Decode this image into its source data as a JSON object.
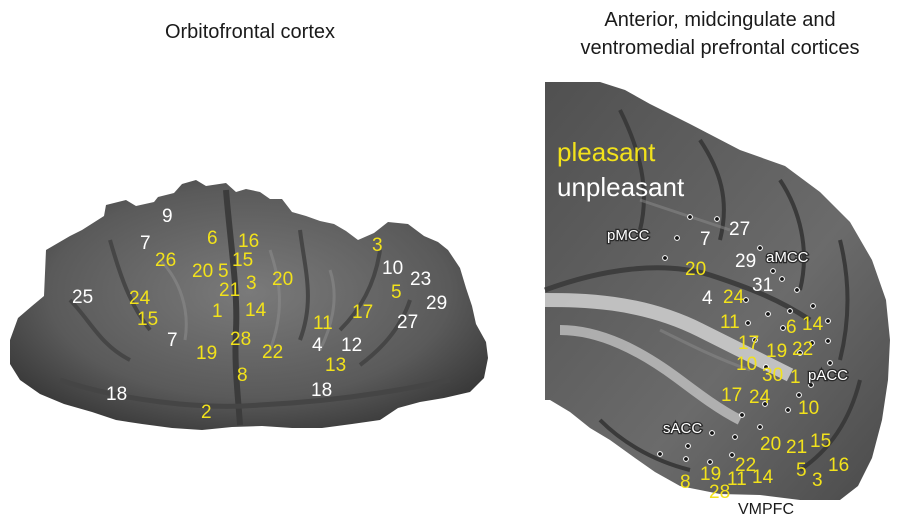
{
  "titles": {
    "left": "Orbitofrontal cortex",
    "right_line1": "Anterior, midcingulate and",
    "right_line2": "ventromedial prefrontal cortices"
  },
  "legend": {
    "pleasant": "pleasant",
    "unpleasant": "unpleasant",
    "pleasant_color": "#f2e21b",
    "unpleasant_color": "#ffffff"
  },
  "regions": {
    "pmcc": "pMCC",
    "amcc": "aMCC",
    "pacc": "pACC",
    "sacc": "sACC",
    "vmpfc": "VMPFC"
  },
  "ofc_labels": [
    {
      "t": "9",
      "c": "unpleasant"
    },
    {
      "t": "7",
      "c": "unpleasant"
    },
    {
      "t": "6",
      "c": "pleasant"
    },
    {
      "t": "16",
      "c": "pleasant"
    },
    {
      "t": "26",
      "c": "pleasant"
    },
    {
      "t": "15",
      "c": "pleasant"
    },
    {
      "t": "20",
      "c": "pleasant"
    },
    {
      "t": "5",
      "c": "pleasant"
    },
    {
      "t": "3",
      "c": "pleasant"
    },
    {
      "t": "21",
      "c": "pleasant"
    },
    {
      "t": "20",
      "c": "pleasant"
    },
    {
      "t": "3",
      "c": "pleasant"
    },
    {
      "t": "10",
      "c": "unpleasant"
    },
    {
      "t": "23",
      "c": "unpleasant"
    },
    {
      "t": "5",
      "c": "pleasant"
    },
    {
      "t": "29",
      "c": "unpleasant"
    },
    {
      "t": "25",
      "c": "unpleasant"
    },
    {
      "t": "24",
      "c": "pleasant"
    },
    {
      "t": "15",
      "c": "pleasant"
    },
    {
      "t": "1",
      "c": "pleasant"
    },
    {
      "t": "14",
      "c": "pleasant"
    },
    {
      "t": "17",
      "c": "pleasant"
    },
    {
      "t": "27",
      "c": "unpleasant"
    },
    {
      "t": "11",
      "c": "pleasant"
    },
    {
      "t": "7",
      "c": "unpleasant"
    },
    {
      "t": "28",
      "c": "pleasant"
    },
    {
      "t": "4",
      "c": "unpleasant"
    },
    {
      "t": "12",
      "c": "unpleasant"
    },
    {
      "t": "19",
      "c": "pleasant"
    },
    {
      "t": "22",
      "c": "pleasant"
    },
    {
      "t": "13",
      "c": "pleasant"
    },
    {
      "t": "8",
      "c": "pleasant"
    },
    {
      "t": "18",
      "c": "unpleasant"
    },
    {
      "t": "18",
      "c": "unpleasant"
    },
    {
      "t": "2",
      "c": "pleasant"
    }
  ],
  "cing_labels": [
    {
      "t": "7",
      "c": "unpleasant"
    },
    {
      "t": "27",
      "c": "unpleasant"
    },
    {
      "t": "20",
      "c": "pleasant"
    },
    {
      "t": "29",
      "c": "unpleasant"
    },
    {
      "t": "31",
      "c": "unpleasant"
    },
    {
      "t": "4",
      "c": "unpleasant"
    },
    {
      "t": "24",
      "c": "pleasant"
    },
    {
      "t": "11",
      "c": "pleasant"
    },
    {
      "t": "6",
      "c": "pleasant"
    },
    {
      "t": "14",
      "c": "pleasant"
    },
    {
      "t": "17",
      "c": "pleasant"
    },
    {
      "t": "19",
      "c": "pleasant"
    },
    {
      "t": "22",
      "c": "pleasant"
    },
    {
      "t": "10",
      "c": "pleasant"
    },
    {
      "t": "30",
      "c": "pleasant"
    },
    {
      "t": "1",
      "c": "pleasant"
    },
    {
      "t": "17",
      "c": "pleasant"
    },
    {
      "t": "24",
      "c": "pleasant"
    },
    {
      "t": "10",
      "c": "pleasant"
    },
    {
      "t": "20",
      "c": "pleasant"
    },
    {
      "t": "21",
      "c": "pleasant"
    },
    {
      "t": "15",
      "c": "pleasant"
    },
    {
      "t": "22",
      "c": "pleasant"
    },
    {
      "t": "16",
      "c": "pleasant"
    },
    {
      "t": "8",
      "c": "pleasant"
    },
    {
      "t": "19",
      "c": "pleasant"
    },
    {
      "t": "11",
      "c": "pleasant"
    },
    {
      "t": "14",
      "c": "pleasant"
    },
    {
      "t": "5",
      "c": "pleasant"
    },
    {
      "t": "3",
      "c": "pleasant"
    },
    {
      "t": "28",
      "c": "pleasant"
    }
  ]
}
